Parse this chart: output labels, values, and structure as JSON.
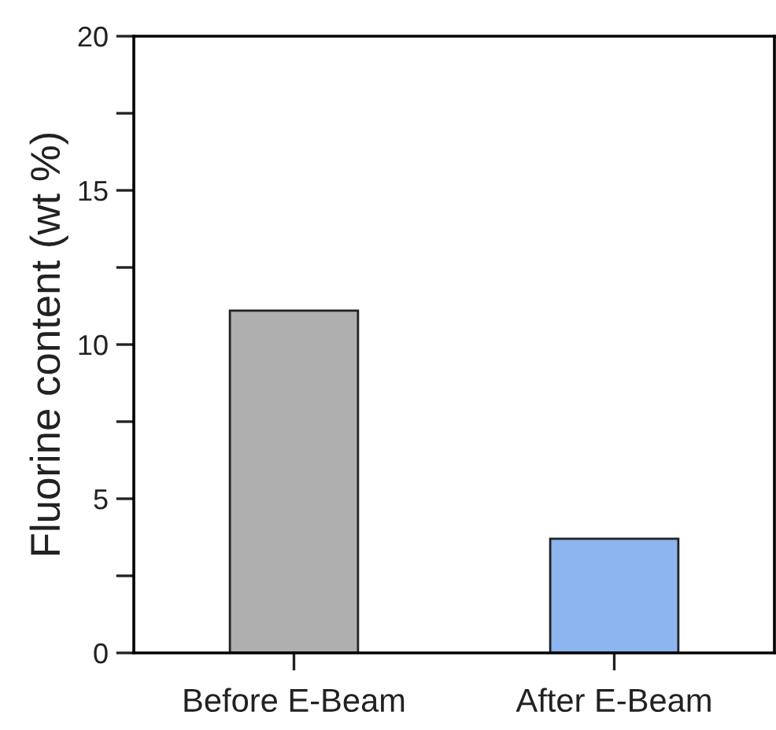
{
  "chart_data": {
    "type": "bar",
    "ylabel": "Fluorine content (wt %)",
    "categories": [
      "Before E-Beam",
      "After E-Beam"
    ],
    "values": [
      11.1,
      3.7
    ],
    "colors": [
      "#afafaf",
      "#8db5ef"
    ],
    "ylim": [
      0,
      20
    ],
    "yticks": [
      0,
      {
        "value": 2.5,
        "label": null
      },
      5,
      {
        "value": 7.5,
        "label": null
      },
      10,
      {
        "value": 12.5,
        "label": null
      },
      15,
      {
        "value": 17.5,
        "label": null
      },
      20
    ],
    "grid": false
  }
}
